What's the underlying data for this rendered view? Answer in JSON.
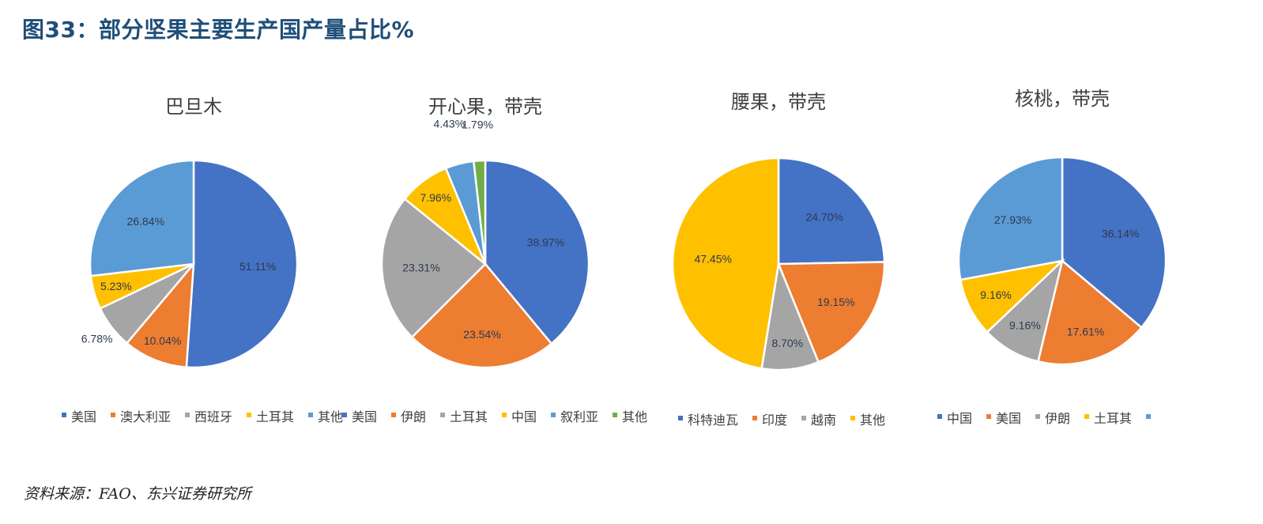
{
  "figure_title": "图33：部分坚果主要生产国产量占比%",
  "source": "资料来源：FAO、东兴证券研究所",
  "colors": {
    "blue": "#4472c4",
    "orange": "#ed7d31",
    "gray": "#a5a5a5",
    "yellow": "#ffc000",
    "lightblue": "#5b9bd5",
    "green": "#70ad47"
  },
  "chart_data": [
    {
      "type": "pie",
      "title": "巴旦木",
      "series": [
        {
          "labels": [
            "美国",
            "澳大利亚",
            "西班牙",
            "土耳其",
            "其他"
          ],
          "values": [
            51.11,
            10.04,
            6.78,
            5.23,
            26.84
          ],
          "value_labels": [
            "51.11%",
            "10.04%",
            "6.78%",
            "5.23%",
            "26.84%"
          ]
        }
      ],
      "legend": [
        "美国",
        "澳大利亚",
        "西班牙",
        "土耳其",
        "其他"
      ],
      "legend_position": "bottom"
    },
    {
      "type": "pie",
      "title": "开心果，带壳",
      "series": [
        {
          "labels": [
            "美国",
            "伊朗",
            "土耳其",
            "中国",
            "叙利亚",
            "其他"
          ],
          "values": [
            38.97,
            23.54,
            23.31,
            7.96,
            4.43,
            1.79
          ],
          "value_labels": [
            "38.97%",
            "23.54%",
            "23.31%",
            "7.96%",
            "4.43%",
            "1.79%"
          ]
        }
      ],
      "legend": [
        "美国",
        "伊朗",
        "土耳其",
        "中国",
        "叙利亚",
        "其他"
      ],
      "legend_position": "bottom"
    },
    {
      "type": "pie",
      "title": "腰果，带壳",
      "series": [
        {
          "labels": [
            "科特迪瓦",
            "印度",
            "越南",
            "其他"
          ],
          "values": [
            24.7,
            19.15,
            8.7,
            47.45
          ],
          "value_labels": [
            "24.70%",
            "19.15%",
            "8.70%",
            "47.45%"
          ]
        }
      ],
      "legend": [
        "科特迪瓦",
        "印度",
        "越南",
        "其他"
      ],
      "legend_position": "bottom"
    },
    {
      "type": "pie",
      "title": "核桃，带壳",
      "series": [
        {
          "labels": [
            "中国",
            "美国",
            "伊朗",
            "土耳其",
            ""
          ],
          "values": [
            36.14,
            17.61,
            9.16,
            9.16,
            27.93
          ],
          "value_labels": [
            "36.14%",
            "17.61%",
            "9.16%",
            "9.16%",
            "27.93%"
          ]
        }
      ],
      "legend": [
        "中国",
        "美国",
        "伊朗",
        "土耳其",
        ""
      ],
      "legend_position": "bottom"
    }
  ]
}
